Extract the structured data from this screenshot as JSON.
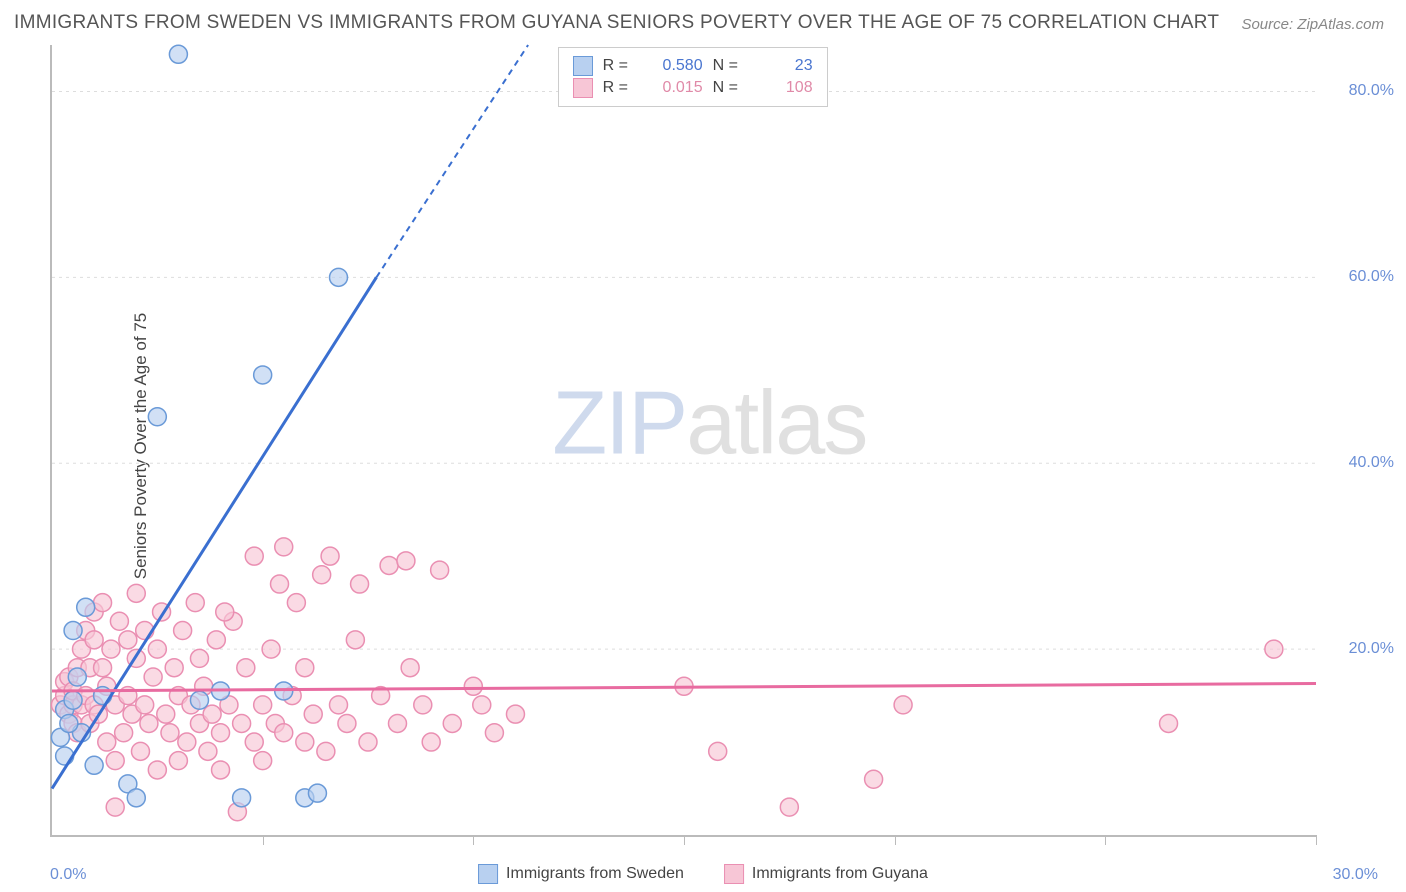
{
  "title": "IMMIGRANTS FROM SWEDEN VS IMMIGRANTS FROM GUYANA SENIORS POVERTY OVER THE AGE OF 75 CORRELATION CHART",
  "source": "Source: ZipAtlas.com",
  "ylabel": "Seniors Poverty Over the Age of 75",
  "watermark_a": "ZIP",
  "watermark_b": "atlas",
  "chart": {
    "type": "scatter",
    "xlim": [
      0,
      30
    ],
    "ylim": [
      0,
      85
    ],
    "xtick_labels": {
      "min": "0.0%",
      "max": "30.0%"
    },
    "ytick_positions": [
      20,
      40,
      60,
      80
    ],
    "ytick_labels": [
      "20.0%",
      "40.0%",
      "60.0%",
      "80.0%"
    ],
    "xtick_positions": [
      5,
      10,
      15,
      20,
      25,
      30
    ],
    "grid_color": "#dddddd",
    "axis_color": "#bbbbbb",
    "background_color": "#ffffff",
    "marker_radius": 9,
    "marker_stroke_width": 1.5,
    "line_width_solid": 3,
    "line_width_dashed": 2
  },
  "series": [
    {
      "name": "Immigrants from Sweden",
      "fill": "#b8d0f0",
      "stroke": "#6a9ad8",
      "line_color": "#3a6fd0",
      "R": "0.580",
      "N": "23",
      "trend": {
        "x1": 0,
        "y1": 5,
        "x2_solid": 7.7,
        "y2_solid": 60,
        "x2_dash": 11.3,
        "y2_dash": 85
      },
      "points": [
        [
          0.2,
          10.5
        ],
        [
          0.3,
          13.5
        ],
        [
          0.5,
          14.5
        ],
        [
          0.5,
          22
        ],
        [
          0.7,
          11
        ],
        [
          0.8,
          24.5
        ],
        [
          1.0,
          7.5
        ],
        [
          1.2,
          15
        ],
        [
          1.8,
          5.5
        ],
        [
          2.0,
          4
        ],
        [
          2.5,
          45
        ],
        [
          3.0,
          84
        ],
        [
          3.5,
          14.5
        ],
        [
          4.0,
          15.5
        ],
        [
          4.5,
          4
        ],
        [
          5.0,
          49.5
        ],
        [
          5.5,
          15.5
        ],
        [
          6.0,
          4
        ],
        [
          6.3,
          4.5
        ],
        [
          6.8,
          60
        ],
        [
          0.4,
          12
        ],
        [
          0.3,
          8.5
        ],
        [
          0.6,
          17
        ]
      ]
    },
    {
      "name": "Immigrants from Guyana",
      "fill": "#f7c6d6",
      "stroke": "#ea8fb2",
      "line_color": "#e86ba0",
      "R": "0.015",
      "N": "108",
      "trend": {
        "x1": 0,
        "y1": 15.5,
        "x2_solid": 30,
        "y2_solid": 16.3
      },
      "points": [
        [
          0.2,
          14
        ],
        [
          0.3,
          15
        ],
        [
          0.3,
          16.5
        ],
        [
          0.4,
          13
        ],
        [
          0.4,
          17
        ],
        [
          0.5,
          14
        ],
        [
          0.5,
          15.5
        ],
        [
          0.5,
          12
        ],
        [
          0.6,
          18
        ],
        [
          0.6,
          11
        ],
        [
          0.7,
          14
        ],
        [
          0.7,
          20
        ],
        [
          0.8,
          15
        ],
        [
          0.8,
          22
        ],
        [
          0.9,
          18
        ],
        [
          0.9,
          12
        ],
        [
          1.0,
          14
        ],
        [
          1.0,
          24
        ],
        [
          1.0,
          21
        ],
        [
          1.1,
          13
        ],
        [
          1.2,
          18
        ],
        [
          1.2,
          25
        ],
        [
          1.3,
          16
        ],
        [
          1.3,
          10
        ],
        [
          1.4,
          20
        ],
        [
          1.5,
          14
        ],
        [
          1.5,
          8
        ],
        [
          1.6,
          23
        ],
        [
          1.7,
          11
        ],
        [
          1.8,
          21
        ],
        [
          1.8,
          15
        ],
        [
          1.9,
          13
        ],
        [
          2.0,
          26
        ],
        [
          2.0,
          19
        ],
        [
          2.1,
          9
        ],
        [
          2.2,
          14
        ],
        [
          2.2,
          22
        ],
        [
          2.3,
          12
        ],
        [
          2.4,
          17
        ],
        [
          2.5,
          7
        ],
        [
          2.5,
          20
        ],
        [
          2.6,
          24
        ],
        [
          2.7,
          13
        ],
        [
          2.8,
          11
        ],
        [
          2.9,
          18
        ],
        [
          3.0,
          8
        ],
        [
          3.0,
          15
        ],
        [
          3.1,
          22
        ],
        [
          3.2,
          10
        ],
        [
          3.3,
          14
        ],
        [
          3.4,
          25
        ],
        [
          3.5,
          12
        ],
        [
          3.5,
          19
        ],
        [
          3.6,
          16
        ],
        [
          3.7,
          9
        ],
        [
          3.8,
          13
        ],
        [
          3.9,
          21
        ],
        [
          4.0,
          11
        ],
        [
          4.0,
          7
        ],
        [
          4.2,
          14
        ],
        [
          4.3,
          23
        ],
        [
          4.4,
          2.5
        ],
        [
          4.5,
          12
        ],
        [
          4.6,
          18
        ],
        [
          4.8,
          10
        ],
        [
          4.8,
          30
        ],
        [
          5.0,
          14
        ],
        [
          5.0,
          8
        ],
        [
          5.2,
          20
        ],
        [
          5.3,
          12
        ],
        [
          5.5,
          31
        ],
        [
          5.5,
          11
        ],
        [
          5.7,
          15
        ],
        [
          5.8,
          25
        ],
        [
          6.0,
          10
        ],
        [
          6.0,
          18
        ],
        [
          6.2,
          13
        ],
        [
          6.4,
          28
        ],
        [
          6.5,
          9
        ],
        [
          6.6,
          30
        ],
        [
          6.8,
          14
        ],
        [
          7.0,
          12
        ],
        [
          7.2,
          21
        ],
        [
          7.3,
          27
        ],
        [
          7.5,
          10
        ],
        [
          7.8,
          15
        ],
        [
          8.0,
          29
        ],
        [
          8.2,
          12
        ],
        [
          8.4,
          29.5
        ],
        [
          8.5,
          18
        ],
        [
          8.8,
          14
        ],
        [
          9.0,
          10
        ],
        [
          9.2,
          28.5
        ],
        [
          9.5,
          12
        ],
        [
          10.0,
          16
        ],
        [
          10.2,
          14
        ],
        [
          10.5,
          11
        ],
        [
          11.0,
          13
        ],
        [
          15.0,
          16
        ],
        [
          15.8,
          9
        ],
        [
          17.5,
          3
        ],
        [
          19.5,
          6
        ],
        [
          20.2,
          14
        ],
        [
          26.5,
          12
        ],
        [
          29.0,
          20
        ],
        [
          5.4,
          27
        ],
        [
          4.1,
          24
        ],
        [
          1.5,
          3
        ]
      ]
    }
  ],
  "stats_labels": {
    "R": "R =",
    "N": "N ="
  },
  "legend_label_a": "Immigrants from Sweden",
  "legend_label_b": "Immigrants from Guyana"
}
